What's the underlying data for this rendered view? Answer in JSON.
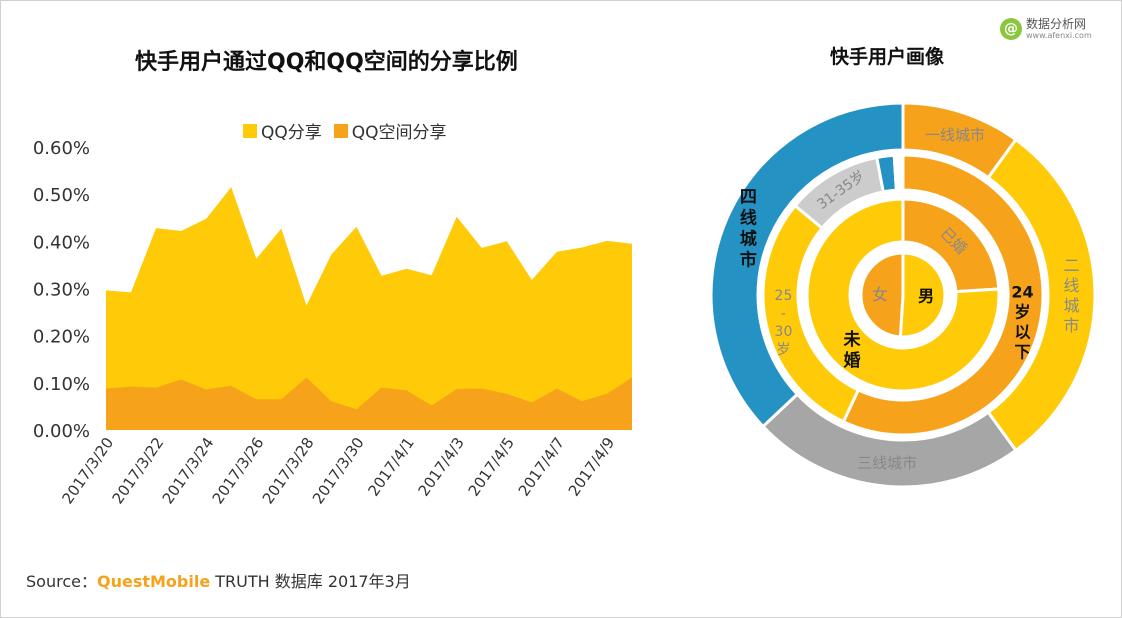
{
  "watermark": {
    "icon": "@",
    "name": "数据分析网",
    "url": "www.afenxi.com"
  },
  "left_title": "快手用户通过QQ和QQ空间的分享比例",
  "right_title": "快手用户画像",
  "source": {
    "prefix": "Source：",
    "brand": "QuestMobile",
    "suffix": " TRUTH 数据库 2017年3月"
  },
  "colors": {
    "qq_share": "#FFCA08",
    "qzone_share": "#F7A21B",
    "blue": "#2592C4",
    "gray": "#A6A6A6",
    "light_gray": "#CCCCCC",
    "text_gray": "#888888"
  },
  "chart_data": [
    {
      "type": "area",
      "title": "快手用户通过QQ和QQ空间的分享比例",
      "x": [
        "2017/3/20",
        "2017/3/21",
        "2017/3/22",
        "2017/3/23",
        "2017/3/24",
        "2017/3/25",
        "2017/3/26",
        "2017/3/27",
        "2017/3/28",
        "2017/3/29",
        "2017/3/30",
        "2017/3/31",
        "2017/4/1",
        "2017/4/2",
        "2017/4/3",
        "2017/4/4",
        "2017/4/5",
        "2017/4/6",
        "2017/4/7",
        "2017/4/8",
        "2017/4/9",
        "2017/4/10"
      ],
      "x_tick_labels": [
        "2017/3/20",
        "2017/3/22",
        "2017/3/24",
        "2017/3/26",
        "2017/3/28",
        "2017/3/30",
        "2017/4/1",
        "2017/4/3",
        "2017/4/5",
        "2017/4/7",
        "2017/4/9"
      ],
      "series": [
        {
          "name": "QQ分享",
          "values": [
            0.296,
            0.292,
            0.428,
            0.422,
            0.448,
            0.515,
            0.363,
            0.427,
            0.264,
            0.372,
            0.431,
            0.327,
            0.342,
            0.328,
            0.452,
            0.386,
            0.4,
            0.318,
            0.378,
            0.387,
            0.401,
            0.395
          ]
        },
        {
          "name": "QQ空间分享",
          "values": [
            0.088,
            0.092,
            0.09,
            0.107,
            0.086,
            0.094,
            0.065,
            0.065,
            0.111,
            0.061,
            0.044,
            0.09,
            0.084,
            0.052,
            0.087,
            0.088,
            0.077,
            0.058,
            0.088,
            0.061,
            0.077,
            0.111
          ]
        }
      ],
      "y_tick_labels": [
        "0.00%",
        "0.10%",
        "0.20%",
        "0.30%",
        "0.40%",
        "0.50%",
        "0.60%"
      ],
      "ylim": [
        0,
        0.006
      ],
      "legend": "top",
      "grid": false
    },
    {
      "type": "pie",
      "title": "快手用户画像",
      "rings": [
        {
          "name": "gender",
          "slices": [
            {
              "label": "男",
              "value": 51,
              "color": "#FFCA08"
            },
            {
              "label": "女",
              "value": 49,
              "color": "#F7A21B"
            }
          ]
        },
        {
          "name": "marital",
          "slices": [
            {
              "label": "已婚",
              "value": 24,
              "color": "#F7A21B"
            },
            {
              "label": "未婚",
              "value": 76,
              "color": "#FFCA08"
            }
          ]
        },
        {
          "name": "age",
          "slices": [
            {
              "label": "24岁以下",
              "value": 57,
              "color": "#F7A21B"
            },
            {
              "label": "25-30岁",
              "value": 29,
              "color": "#FFCA08"
            },
            {
              "label": "31-35岁",
              "value": 11,
              "color": "#CCCCCC"
            },
            {
              "label": "",
              "value": 2,
              "color": "#2592C4"
            },
            {
              "label": "",
              "value": 1,
              "color": "#FFFFFF"
            }
          ]
        },
        {
          "name": "city",
          "slices": [
            {
              "label": "一线城市",
              "value": 10,
              "color": "#F7A21B"
            },
            {
              "label": "二线城市",
              "value": 30,
              "color": "#FFCA08"
            },
            {
              "label": "三线城市",
              "value": 23,
              "color": "#A6A6A6"
            },
            {
              "label": "四线城市",
              "value": 37,
              "color": "#2592C4"
            }
          ]
        }
      ]
    }
  ]
}
